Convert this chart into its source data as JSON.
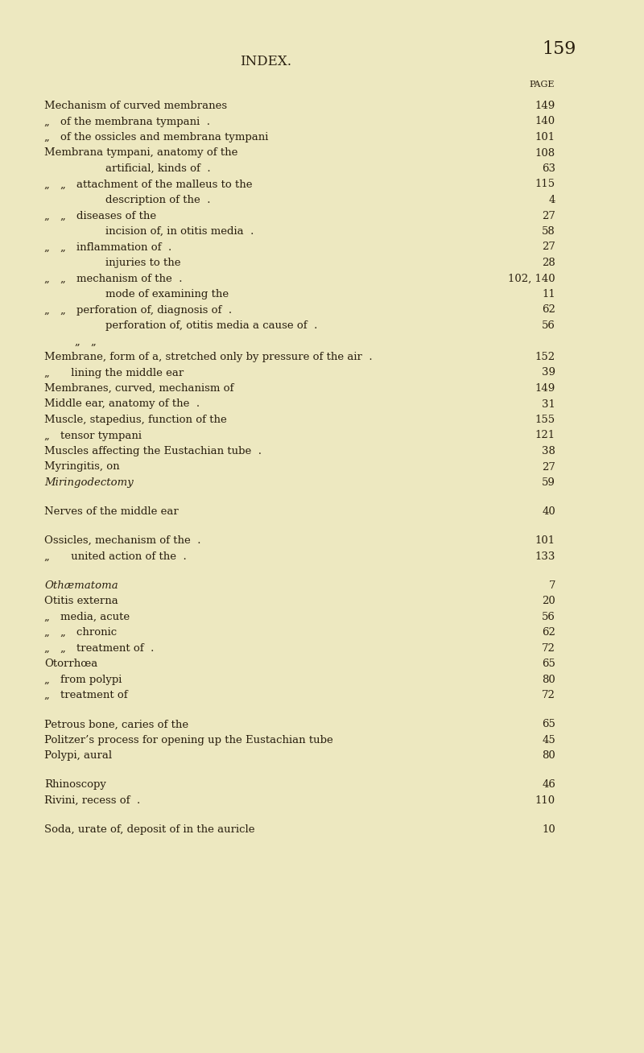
{
  "bg_color": "#ede8c0",
  "text_color": "#2a2010",
  "title": "INDEX.",
  "page_number": "159",
  "page_label": "PAGE",
  "figsize": [
    8.0,
    13.08
  ],
  "dpi": 100,
  "entries": [
    {
      "indent": 0,
      "text": "Mechanism of curved membranes",
      "trailing": "  .  .  .  .",
      "italic": false,
      "page": "149",
      "spacer": false
    },
    {
      "indent": 1,
      "prefix": "„ ",
      "text": "of the membrana tympani  .",
      "trailing": "  .  .",
      "italic": false,
      "page": "140",
      "spacer": false
    },
    {
      "indent": 1,
      "prefix": "„ ",
      "text": "of the ossicles and membrana tympani",
      "trailing": "  .",
      "italic": false,
      "page": "101",
      "spacer": false
    },
    {
      "indent": 0,
      "text": "Membrana tympani, anatomy of the",
      "trailing": "  .  .",
      "italic": false,
      "page": "108",
      "spacer": false
    },
    {
      "indent": 2,
      "prefix": "",
      "text": "artificial, kinds of  .",
      "trailing": "  .  .",
      "italic": false,
      "page": "63",
      "spacer": false
    },
    {
      "indent": 1,
      "prefix": "„ „ ",
      "text": "attachment of the malleus to the",
      "trailing": "  .",
      "italic": false,
      "page": "115",
      "spacer": false
    },
    {
      "indent": 2,
      "prefix": "",
      "text": "description of the  .",
      "trailing": "  .  .",
      "italic": false,
      "page": "4",
      "spacer": false
    },
    {
      "indent": 1,
      "prefix": "„ „ ",
      "text": "diseases of the",
      "trailing": "  .  .",
      "italic": false,
      "page": "27",
      "spacer": false
    },
    {
      "indent": 2,
      "prefix": "",
      "text": "incision of, in otitis media  .",
      "trailing": "  .",
      "italic": false,
      "page": "58",
      "spacer": false
    },
    {
      "indent": 1,
      "prefix": "„ „ ",
      "text": "inflammation of  .",
      "trailing": "  .  .",
      "italic": false,
      "page": "27",
      "spacer": false
    },
    {
      "indent": 2,
      "prefix": "",
      "text": "injuries to the",
      "trailing": "  .  .  .",
      "italic": false,
      "page": "28",
      "spacer": false
    },
    {
      "indent": 1,
      "prefix": "„ „ ",
      "text": "mechanism of the  .",
      "trailing": "  .  .",
      "italic": false,
      "page": "102, 140",
      "spacer": false
    },
    {
      "indent": 2,
      "prefix": "",
      "text": "mode of examining the",
      "trailing": "  .  .",
      "italic": false,
      "page": "11",
      "spacer": false
    },
    {
      "indent": 1,
      "prefix": "„ „ ",
      "text": "perforation of, diagnosis of  .",
      "trailing": "  .",
      "italic": false,
      "page": "62",
      "spacer": false
    },
    {
      "indent": 2,
      "prefix": "",
      "text": "perforation of, otitis media a cause of  .",
      "trailing": "  .",
      "italic": false,
      "page": "56",
      "spacer": false
    },
    {
      "indent": 1,
      "prefix": "„ „",
      "text": "",
      "trailing": "",
      "italic": false,
      "page": "",
      "spacer": false
    },
    {
      "indent": 0,
      "text": "Membrane, form of a, stretched only by pressure of the air  .",
      "trailing": "  .",
      "italic": false,
      "page": "152",
      "spacer": false
    },
    {
      "indent": 1,
      "prefix": "„  ",
      "text": "lining the middle ear",
      "trailing": "  .  .",
      "italic": false,
      "page": "39",
      "spacer": false
    },
    {
      "indent": 0,
      "text": "Membranes, curved, mechanism of",
      "trailing": "  .  .",
      "italic": false,
      "page": "149",
      "spacer": false
    },
    {
      "indent": 0,
      "text": "Middle ear, anatomy of the  .",
      "trailing": "  .  .",
      "italic": false,
      "page": "31",
      "spacer": false
    },
    {
      "indent": 0,
      "text": "Muscle, stapedius, function of the",
      "trailing": "  .  .",
      "italic": false,
      "page": "155",
      "spacer": false
    },
    {
      "indent": 1,
      "prefix": "„ ",
      "text": "tensor tympani",
      "trailing": "  .  .  .",
      "italic": false,
      "page": "121",
      "spacer": false
    },
    {
      "indent": 0,
      "text": "Muscles affecting the Eustachian tube  .",
      "trailing": "  .",
      "italic": false,
      "page": "38",
      "spacer": false
    },
    {
      "indent": 0,
      "text": "Myringitis, on",
      "trailing": "  .  .  .  .",
      "italic": false,
      "page": "27",
      "spacer": false
    },
    {
      "indent": 0,
      "text": "Miringodectomy",
      "trailing": "  .  .  .  .",
      "italic": true,
      "page": "59",
      "spacer": false
    },
    {
      "indent": 0,
      "text": "",
      "trailing": "",
      "italic": false,
      "page": "",
      "spacer": true
    },
    {
      "indent": 0,
      "text": "Nerves of the middle ear",
      "trailing": "  .  .  .",
      "italic": false,
      "page": "40",
      "spacer": false
    },
    {
      "indent": 0,
      "text": "",
      "trailing": "",
      "italic": false,
      "page": "",
      "spacer": true
    },
    {
      "indent": 0,
      "text": "Ossicles, mechanism of the  .",
      "trailing": "  .  .",
      "italic": false,
      "page": "101",
      "spacer": false
    },
    {
      "indent": 1,
      "prefix": "„  ",
      "text": "united action of the  .",
      "trailing": "  .  .",
      "italic": false,
      "page": "133",
      "spacer": false
    },
    {
      "indent": 0,
      "text": "",
      "trailing": "",
      "italic": false,
      "page": "",
      "spacer": true
    },
    {
      "indent": 0,
      "text": "Othæmatoma",
      "trailing": "  .  .  .  .  .",
      "italic": true,
      "page": "7",
      "spacer": false
    },
    {
      "indent": 0,
      "text": "Otitis externa",
      "trailing": "  .  .  .  .  .",
      "italic": false,
      "page": "20",
      "spacer": false
    },
    {
      "indent": 1,
      "prefix": "„ ",
      "text": "media, acute",
      "trailing": "  .  .  .",
      "italic": false,
      "page": "56",
      "spacer": false
    },
    {
      "indent": 1,
      "prefix": "„ „ ",
      "text": "chronic",
      "trailing": "  .  .  .",
      "italic": false,
      "page": "62",
      "spacer": false
    },
    {
      "indent": 1,
      "prefix": "„ „ ",
      "text": "treatment of  .",
      "trailing": "  .  .",
      "italic": false,
      "page": "72",
      "spacer": false
    },
    {
      "indent": 0,
      "text": "Otorrhœa",
      "trailing": "  .  .  .  .  .",
      "italic": false,
      "page": "65",
      "spacer": false
    },
    {
      "indent": 1,
      "prefix": "„ ",
      "text": "from polypi",
      "trailing": "  .  .  .",
      "italic": false,
      "page": "80",
      "spacer": false
    },
    {
      "indent": 1,
      "prefix": "„ ",
      "text": "treatment of",
      "trailing": "  .  .  .",
      "italic": false,
      "page": "72",
      "spacer": false
    },
    {
      "indent": 0,
      "text": "",
      "trailing": "",
      "italic": false,
      "page": "",
      "spacer": true
    },
    {
      "indent": 0,
      "text": "Petrous bone, caries of the",
      "trailing": "  .  .  .  .",
      "italic": false,
      "page": "65",
      "spacer": false
    },
    {
      "indent": 0,
      "text": "Politzer’s process for opening up the Eustachian tube",
      "trailing": "  .",
      "italic": false,
      "page": "45",
      "spacer": false
    },
    {
      "indent": 0,
      "text": "Polypi, aural",
      "trailing": "  .  .  .  .",
      "italic": false,
      "page": "80",
      "spacer": false
    },
    {
      "indent": 0,
      "text": "",
      "trailing": "",
      "italic": false,
      "page": "",
      "spacer": true
    },
    {
      "indent": 0,
      "text": "Rhinoscopy",
      "trailing": "  .  .  .  .",
      "italic": false,
      "page": "46",
      "spacer": false
    },
    {
      "indent": 0,
      "text": "Rivini, recess of  .",
      "trailing": "  .  .  .",
      "italic": false,
      "page": "110",
      "spacer": false
    },
    {
      "indent": 0,
      "text": "",
      "trailing": "",
      "italic": false,
      "page": "",
      "spacer": true
    },
    {
      "indent": 0,
      "text": "Soda, urate of, deposit of in the auricle",
      "trailing": "  .  .",
      "italic": false,
      "page": "10",
      "spacer": false
    }
  ]
}
